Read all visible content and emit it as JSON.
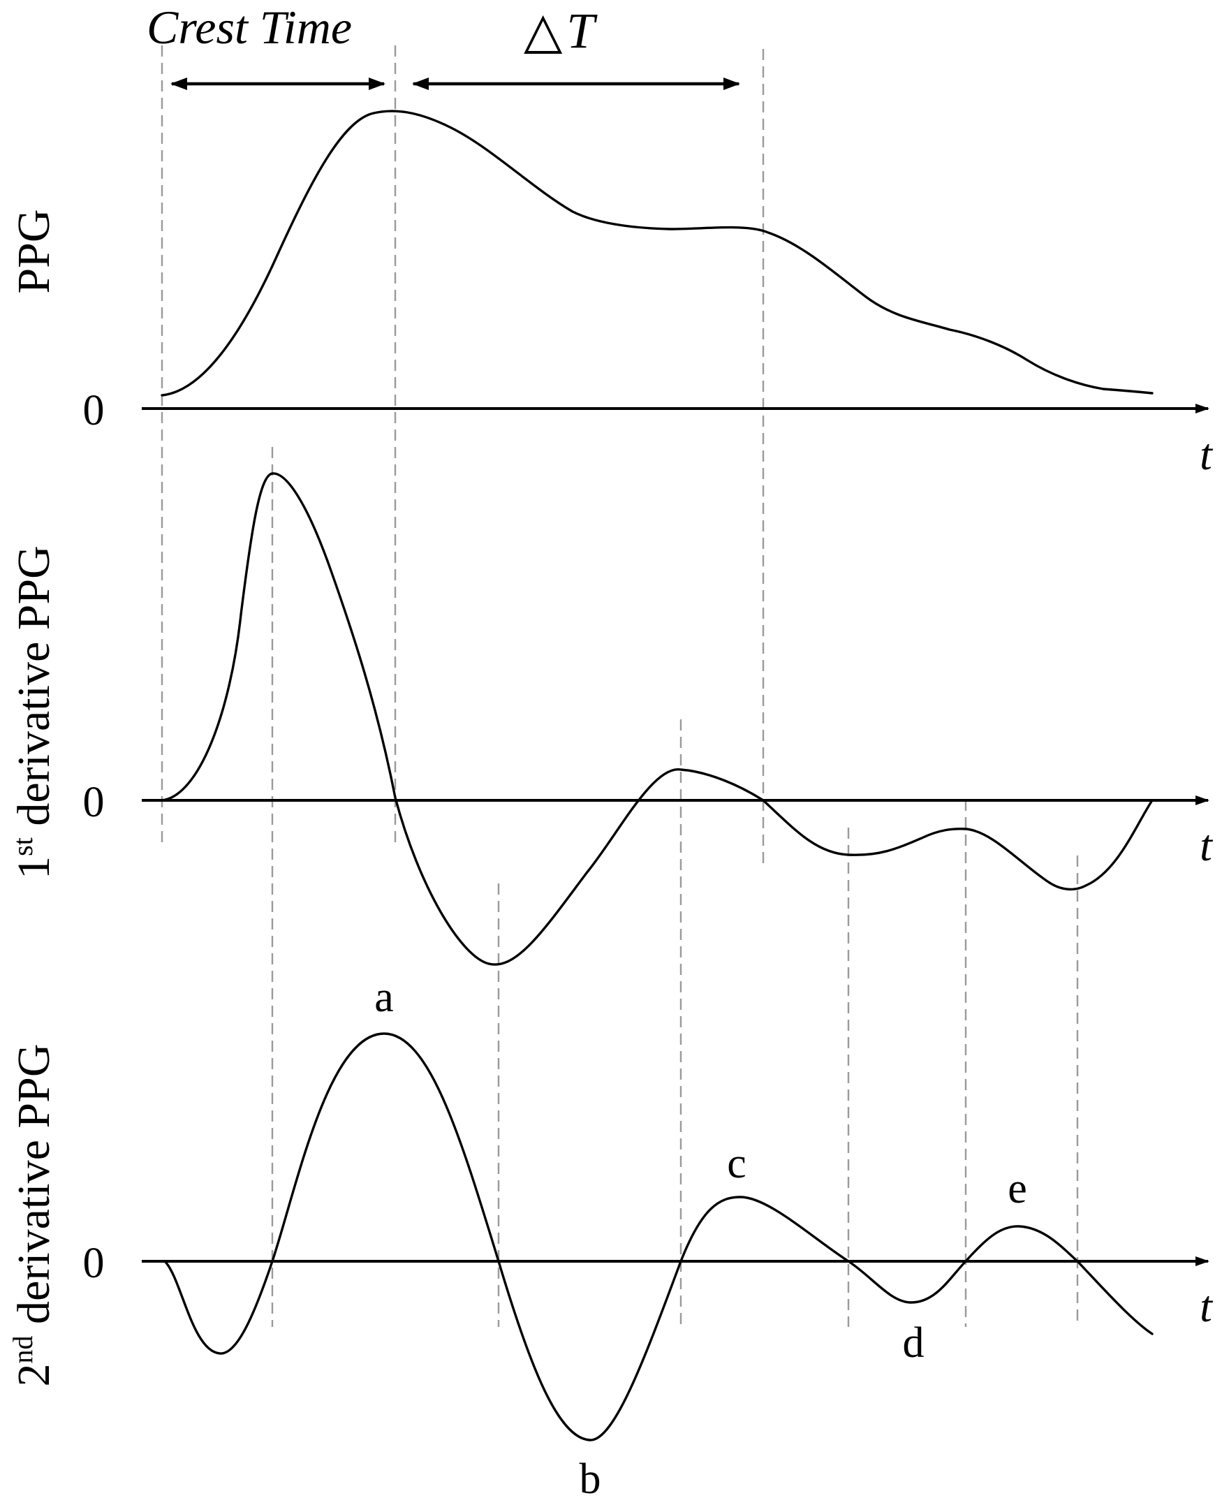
{
  "annotations": {
    "crest_time": "Crest Time",
    "delta_t_symbol": "△",
    "delta_t_letter": "T"
  },
  "panels": [
    {
      "id": "ppg",
      "ylabel_main": "PPG",
      "ylabel_sup": "",
      "ylabel_rest": "",
      "zero_label": "0",
      "x_label": "t"
    },
    {
      "id": "d1",
      "ylabel_main": "1",
      "ylabel_sup": "st",
      "ylabel_rest": " derivative PPG",
      "zero_label": "0",
      "x_label": "t"
    },
    {
      "id": "d2",
      "ylabel_main": "2",
      "ylabel_sup": "nd",
      "ylabel_rest": " derivative PPG",
      "zero_label": "0",
      "x_label": "t"
    }
  ],
  "wave_points": {
    "a": "a",
    "b": "b",
    "c": "c",
    "d": "d",
    "e": "e"
  },
  "colors": {
    "curve": "#000000",
    "guide": "#9a9a9a",
    "background": "#ffffff"
  }
}
